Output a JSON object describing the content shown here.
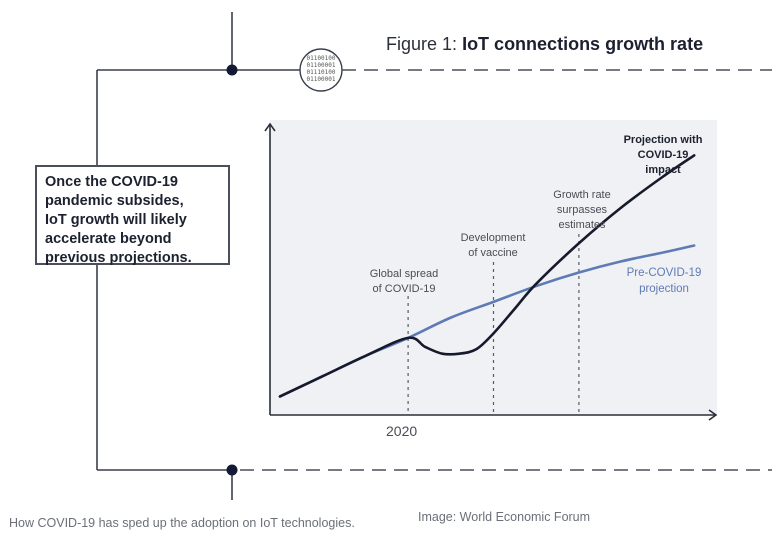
{
  "figure": {
    "title_prefix": "Figure 1:",
    "title_bold": "IoT connections growth rate",
    "data_icon_lines": [
      "01100100",
      "01100001",
      "01110100",
      "01100001"
    ]
  },
  "callout": {
    "lines": [
      "Once the COVID-19",
      "pandemic subsides,",
      "IoT growth will likely",
      "accelerate beyond",
      "previous projections."
    ]
  },
  "chart_data": {
    "type": "line",
    "title": "IoT connections growth rate",
    "xlabel": "",
    "ylabel": "",
    "x_tick_labels": [
      "2020"
    ],
    "grid": false,
    "x_range": [
      0,
      100
    ],
    "y_range": [
      0,
      100
    ],
    "series": [
      {
        "name": "Pre-COVID-19 projection",
        "color": "#5f7bb5",
        "x": [
          0,
          10,
          20,
          30,
          40,
          50,
          60,
          70,
          80,
          90,
          97
        ],
        "y": [
          6,
          15,
          24,
          32,
          41,
          48,
          55,
          61,
          66,
          70,
          73
        ]
      },
      {
        "name": "Projection with COVID-19 impact",
        "color": "#161b2c",
        "x": [
          0,
          10,
          20,
          30,
          34,
          38,
          42,
          46,
          50,
          55,
          60,
          70,
          80,
          90,
          97
        ],
        "y": [
          6,
          15,
          24,
          32,
          28,
          25,
          25,
          27,
          34,
          45,
          56,
          74,
          90,
          104,
          113
        ]
      }
    ],
    "events": [
      {
        "label": [
          "Global spread",
          "of COVID-19"
        ],
        "x": 30
      },
      {
        "label": [
          "Development",
          "of vaccine"
        ],
        "x": 50
      },
      {
        "label": [
          "Growth rate",
          "surpasses",
          "estimates"
        ],
        "x": 70
      }
    ],
    "series_labels": {
      "covid": [
        "Projection with",
        "COVID-19",
        "impact"
      ],
      "pre": [
        "Pre-COVID-19",
        "projection"
      ]
    },
    "colors": {
      "background": "#f0f1f5",
      "axis": "#2b2f3a",
      "pre_line": "#5f7bb5",
      "covid_line": "#161b2c"
    }
  },
  "caption": {
    "left": "How COVID-19 has sped up the adoption on IoT technologies.",
    "right": "Image: World Economic Forum"
  }
}
